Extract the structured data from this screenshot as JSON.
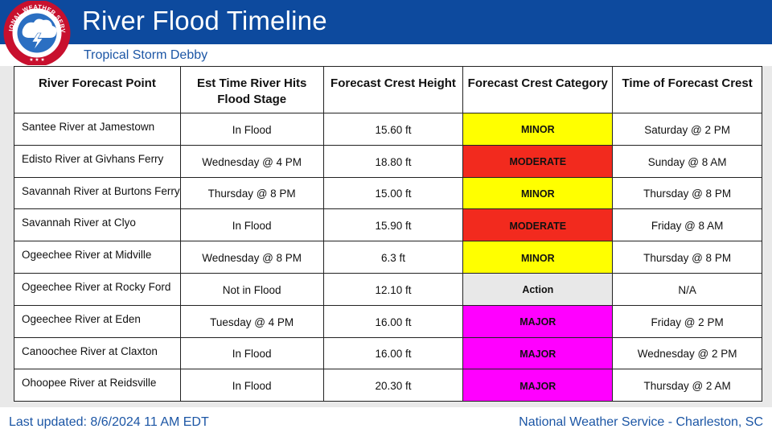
{
  "header": {
    "title": "River Flood Timeline",
    "subtitle": "Tropical Storm Debby",
    "logo_text": "NATIONAL WEATHER SERVICE",
    "colors": {
      "banner": "#0d4a9e",
      "subtitle": "#1c56a5"
    }
  },
  "table": {
    "columns": [
      "River Forecast Point",
      "Est Time River Hits Flood Stage",
      "Forecast Crest Height",
      "Forecast Crest Category",
      "Time of Forecast Crest"
    ],
    "rows": [
      {
        "point": "Santee River at Jamestown",
        "flood_time": "In Flood",
        "crest_height": "15.60 ft",
        "category": "MINOR",
        "category_color": "#ffff00",
        "crest_time": "Saturday @ 2 PM"
      },
      {
        "point": "Edisto River at Givhans Ferry",
        "flood_time": "Wednesday @ 4 PM",
        "crest_height": "18.80 ft",
        "category": "MODERATE",
        "category_color": "#f22a1e",
        "crest_time": "Sunday @ 8 AM"
      },
      {
        "point": "Savannah River at Burtons Ferry",
        "flood_time": "Thursday @ 8 PM",
        "crest_height": "15.00 ft",
        "category": "MINOR",
        "category_color": "#ffff00",
        "crest_time": "Thursday @ 8 PM"
      },
      {
        "point": "Savannah River at Clyo",
        "flood_time": "In Flood",
        "crest_height": "15.90 ft",
        "category": "MODERATE",
        "category_color": "#f22a1e",
        "crest_time": "Friday @ 8 AM"
      },
      {
        "point": "Ogeechee River at Midville",
        "flood_time": "Wednesday @ 8 PM",
        "crest_height": "6.3 ft",
        "category": "MINOR",
        "category_color": "#ffff00",
        "crest_time": "Thursday @ 8 PM"
      },
      {
        "point": "Ogeechee River at Rocky Ford",
        "flood_time": "Not in Flood",
        "crest_height": "12.10 ft",
        "category": "Action",
        "category_color": "#e8e8e8",
        "crest_time": "N/A"
      },
      {
        "point": "Ogeechee River at Eden",
        "flood_time": "Tuesday @ 4 PM",
        "crest_height": "16.00 ft",
        "category": "MAJOR",
        "category_color": "#ff00ff",
        "crest_time": "Friday @ 2 PM"
      },
      {
        "point": "Canoochee River at Claxton",
        "flood_time": "In Flood",
        "crest_height": "16.00 ft",
        "category": "MAJOR",
        "category_color": "#ff00ff",
        "crest_time": "Wednesday @ 2 PM"
      },
      {
        "point": "Ohoopee River at Reidsville",
        "flood_time": "In Flood",
        "crest_height": "20.30 ft",
        "category": "MAJOR",
        "category_color": "#ff00ff",
        "crest_time": "Thursday @ 2 AM"
      }
    ]
  },
  "footer": {
    "last_updated": "Last updated: 8/6/2024 11 AM EDT",
    "office": "National Weather Service - Charleston, SC"
  }
}
